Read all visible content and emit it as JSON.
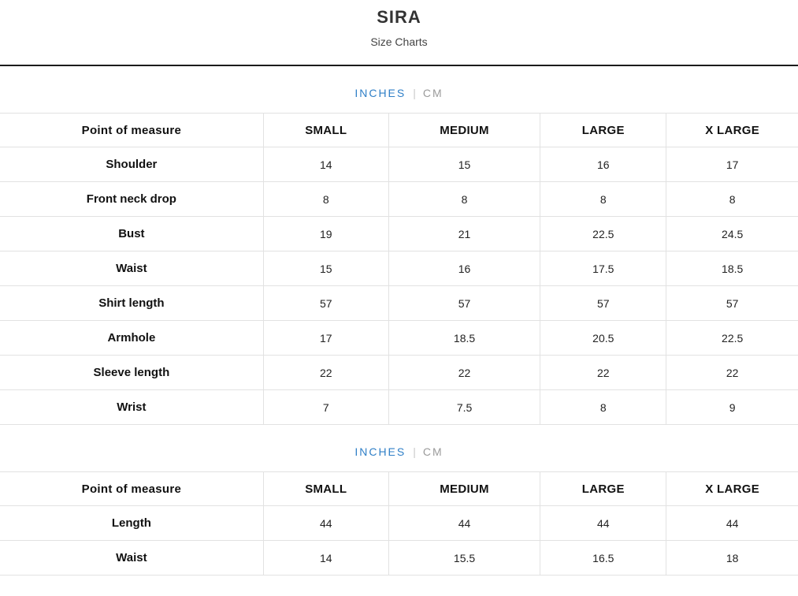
{
  "header": {
    "title": "SIRA",
    "subtitle": "Size Charts"
  },
  "unit_toggle": {
    "inches_label": "INCHES",
    "separator": "|",
    "cm_label": "CM",
    "active_unit": "INCHES"
  },
  "colors": {
    "accent_blue": "#2f7fc7",
    "inactive_gray": "#9b9b9b",
    "table_border": "#e2e2e2",
    "header_divider": "#1b1b1b",
    "text_dark": "#111111"
  },
  "tables": [
    {
      "columns": [
        "Point of measure",
        "SMALL",
        "MEDIUM",
        "LARGE",
        "X LARGE"
      ],
      "rows": [
        {
          "label": "Shoulder",
          "values": [
            "14",
            "15",
            "16",
            "17"
          ]
        },
        {
          "label": "Front neck drop",
          "values": [
            "8",
            "8",
            "8",
            "8"
          ]
        },
        {
          "label": "Bust",
          "values": [
            "19",
            "21",
            "22.5",
            "24.5"
          ]
        },
        {
          "label": "Waist",
          "values": [
            "15",
            "16",
            "17.5",
            "18.5"
          ]
        },
        {
          "label": "Shirt length",
          "values": [
            "57",
            "57",
            "57",
            "57"
          ]
        },
        {
          "label": "Armhole",
          "values": [
            "17",
            "18.5",
            "20.5",
            "22.5"
          ]
        },
        {
          "label": "Sleeve length",
          "values": [
            "22",
            "22",
            "22",
            "22"
          ]
        },
        {
          "label": "Wrist",
          "values": [
            "7",
            "7.5",
            "8",
            "9"
          ]
        }
      ]
    },
    {
      "columns": [
        "Point of measure",
        "SMALL",
        "MEDIUM",
        "LARGE",
        "X LARGE"
      ],
      "rows": [
        {
          "label": "Length",
          "values": [
            "44",
            "44",
            "44",
            "44"
          ]
        },
        {
          "label": "Waist",
          "values": [
            "14",
            "15.5",
            "16.5",
            "18"
          ]
        }
      ]
    }
  ]
}
